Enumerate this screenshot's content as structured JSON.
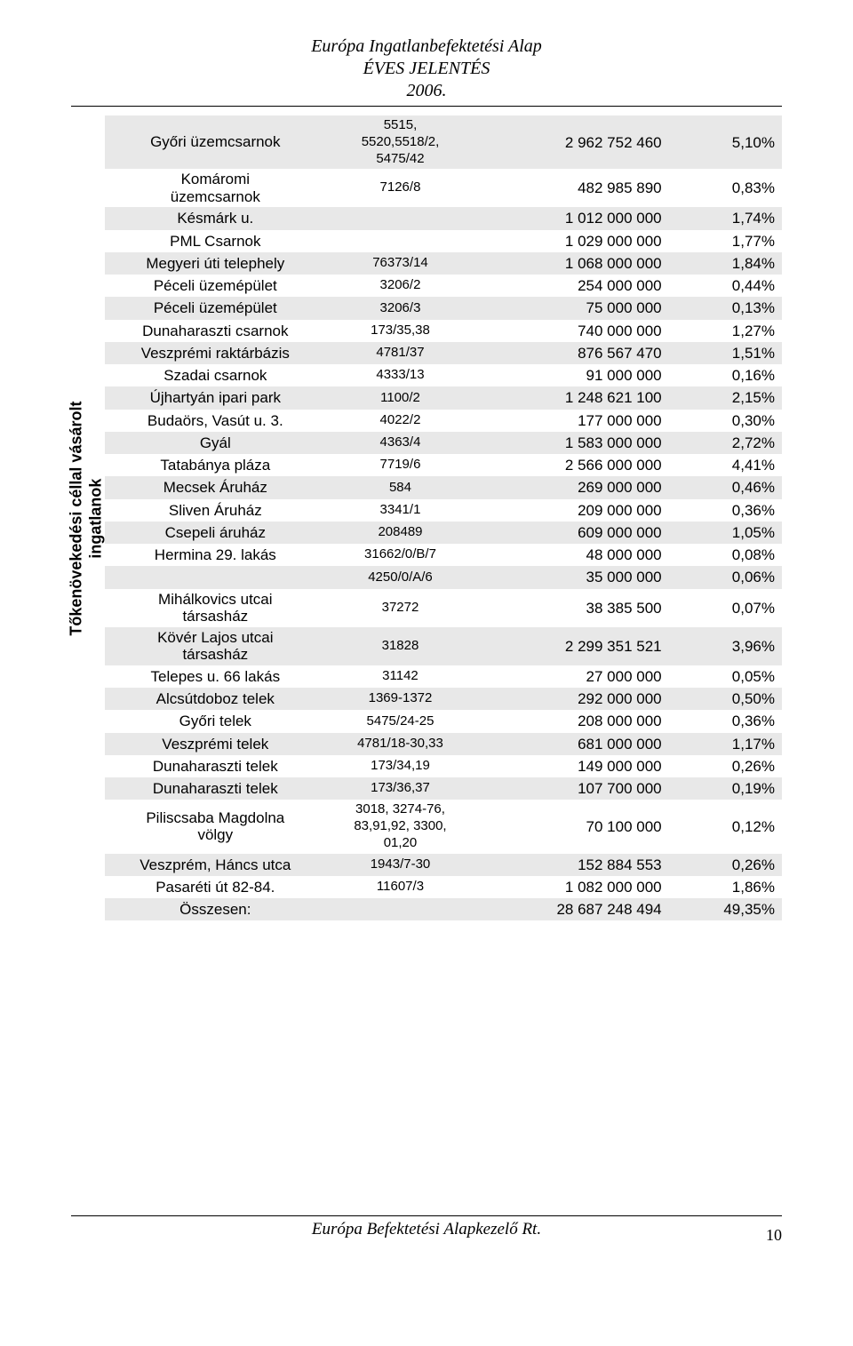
{
  "header": {
    "line1": "Európa Ingatlanbefektetési Alap",
    "line2": "ÉVES JELENTÉS",
    "line3": "2006."
  },
  "side_label": "Tőkenövekedési céllal vásárolt\ningatlanok",
  "rows": [
    {
      "name": "Győri üzemcsarnok",
      "ref": "5515,\n5520,5518/2,\n5475/42",
      "value": "2 962 752 460",
      "pct": "5,10%",
      "multi": true
    },
    {
      "name": "Komáromi\nüzemcsarnok",
      "ref": "7126/8",
      "value": "482 985 890",
      "pct": "0,83%",
      "multi": true
    },
    {
      "name": "Késmárk u.",
      "ref": "",
      "value": "1 012 000 000",
      "pct": "1,74%"
    },
    {
      "name": "PML Csarnok",
      "ref": "",
      "value": "1 029 000 000",
      "pct": "1,77%"
    },
    {
      "name": "Megyeri  úti telephely",
      "ref": "76373/14",
      "value": "1 068 000 000",
      "pct": "1,84%"
    },
    {
      "name": "Péceli üzemépület",
      "ref": "3206/2",
      "value": "254 000 000",
      "pct": "0,44%"
    },
    {
      "name": "Péceli üzemépület",
      "ref": "3206/3",
      "value": "75 000 000",
      "pct": "0,13%"
    },
    {
      "name": "Dunaharaszti csarnok",
      "ref": "173/35,38",
      "value": "740 000 000",
      "pct": "1,27%"
    },
    {
      "name": "Veszprémi raktárbázis",
      "ref": "4781/37",
      "value": "876 567 470",
      "pct": "1,51%"
    },
    {
      "name": "Szadai csarnok",
      "ref": "4333/13",
      "value": "91 000 000",
      "pct": "0,16%"
    },
    {
      "name": "Újhartyán ipari park",
      "ref": "1100/2",
      "value": "1 248 621 100",
      "pct": "2,15%"
    },
    {
      "name": "Budaörs, Vasút u. 3.",
      "ref": "4022/2",
      "value": "177 000 000",
      "pct": "0,30%"
    },
    {
      "name": "Gyál",
      "ref": "4363/4",
      "value": "1 583 000 000",
      "pct": "2,72%"
    },
    {
      "name": "Tatabánya pláza",
      "ref": "7719/6",
      "value": "2 566 000 000",
      "pct": "4,41%"
    },
    {
      "name": "Mecsek Áruház",
      "ref": "584",
      "value": "269 000 000",
      "pct": "0,46%"
    },
    {
      "name": "Sliven Áruház",
      "ref": "3341/1",
      "value": "209 000 000",
      "pct": "0,36%"
    },
    {
      "name": "Csepeli áruház",
      "ref": "208489",
      "value": "609 000 000",
      "pct": "1,05%"
    },
    {
      "name": "Hermina 29. lakás",
      "ref": "31662/0/B/7",
      "value": "48 000 000",
      "pct": "0,08%"
    },
    {
      "name": "",
      "ref": "4250/0/A/6",
      "value": "35 000 000",
      "pct": "0,06%"
    },
    {
      "name": "Mihálkovics utcai\ntársasház",
      "ref": "37272",
      "value": "38 385 500",
      "pct": "0,07%",
      "multi": true
    },
    {
      "name": "Kövér Lajos utcai\ntársasház",
      "ref": "31828",
      "value": "2 299 351 521",
      "pct": "3,96%",
      "multi": true
    },
    {
      "name": "Telepes u. 66 lakás",
      "ref": "31142",
      "value": "27 000 000",
      "pct": "0,05%"
    },
    {
      "name": "Alcsútdoboz telek",
      "ref": "1369-1372",
      "value": "292 000 000",
      "pct": "0,50%"
    },
    {
      "name": "Győri telek",
      "ref": "5475/24-25",
      "value": "208 000 000",
      "pct": "0,36%"
    },
    {
      "name": "Veszprémi telek",
      "ref": "4781/18-30,33",
      "value": "681 000 000",
      "pct": "1,17%"
    },
    {
      "name": "Dunaharaszti telek",
      "ref": "173/34,19",
      "value": "149 000 000",
      "pct": "0,26%"
    },
    {
      "name": "Dunaharaszti telek",
      "ref": "173/36,37",
      "value": "107 700 000",
      "pct": "0,19%"
    },
    {
      "name": "Piliscsaba Magdolna\nvölgy",
      "ref": "3018, 3274-76,\n83,91,92, 3300,\n01,20",
      "value": "70 100 000",
      "pct": "0,12%",
      "multi": true
    },
    {
      "name": "Veszprém, Háncs utca",
      "ref": "1943/7-30",
      "value": "152 884 553",
      "pct": "0,26%"
    },
    {
      "name": "Pasaréti út 82-84.",
      "ref": "11607/3",
      "value": "1 082 000 000",
      "pct": "1,86%"
    },
    {
      "name": "Összesen:",
      "ref": "",
      "value": "28 687 248 494",
      "pct": "49,35%"
    }
  ],
  "footer": {
    "text": "Európa Befektetési Alapkezelő Rt.",
    "page_number": "10"
  }
}
